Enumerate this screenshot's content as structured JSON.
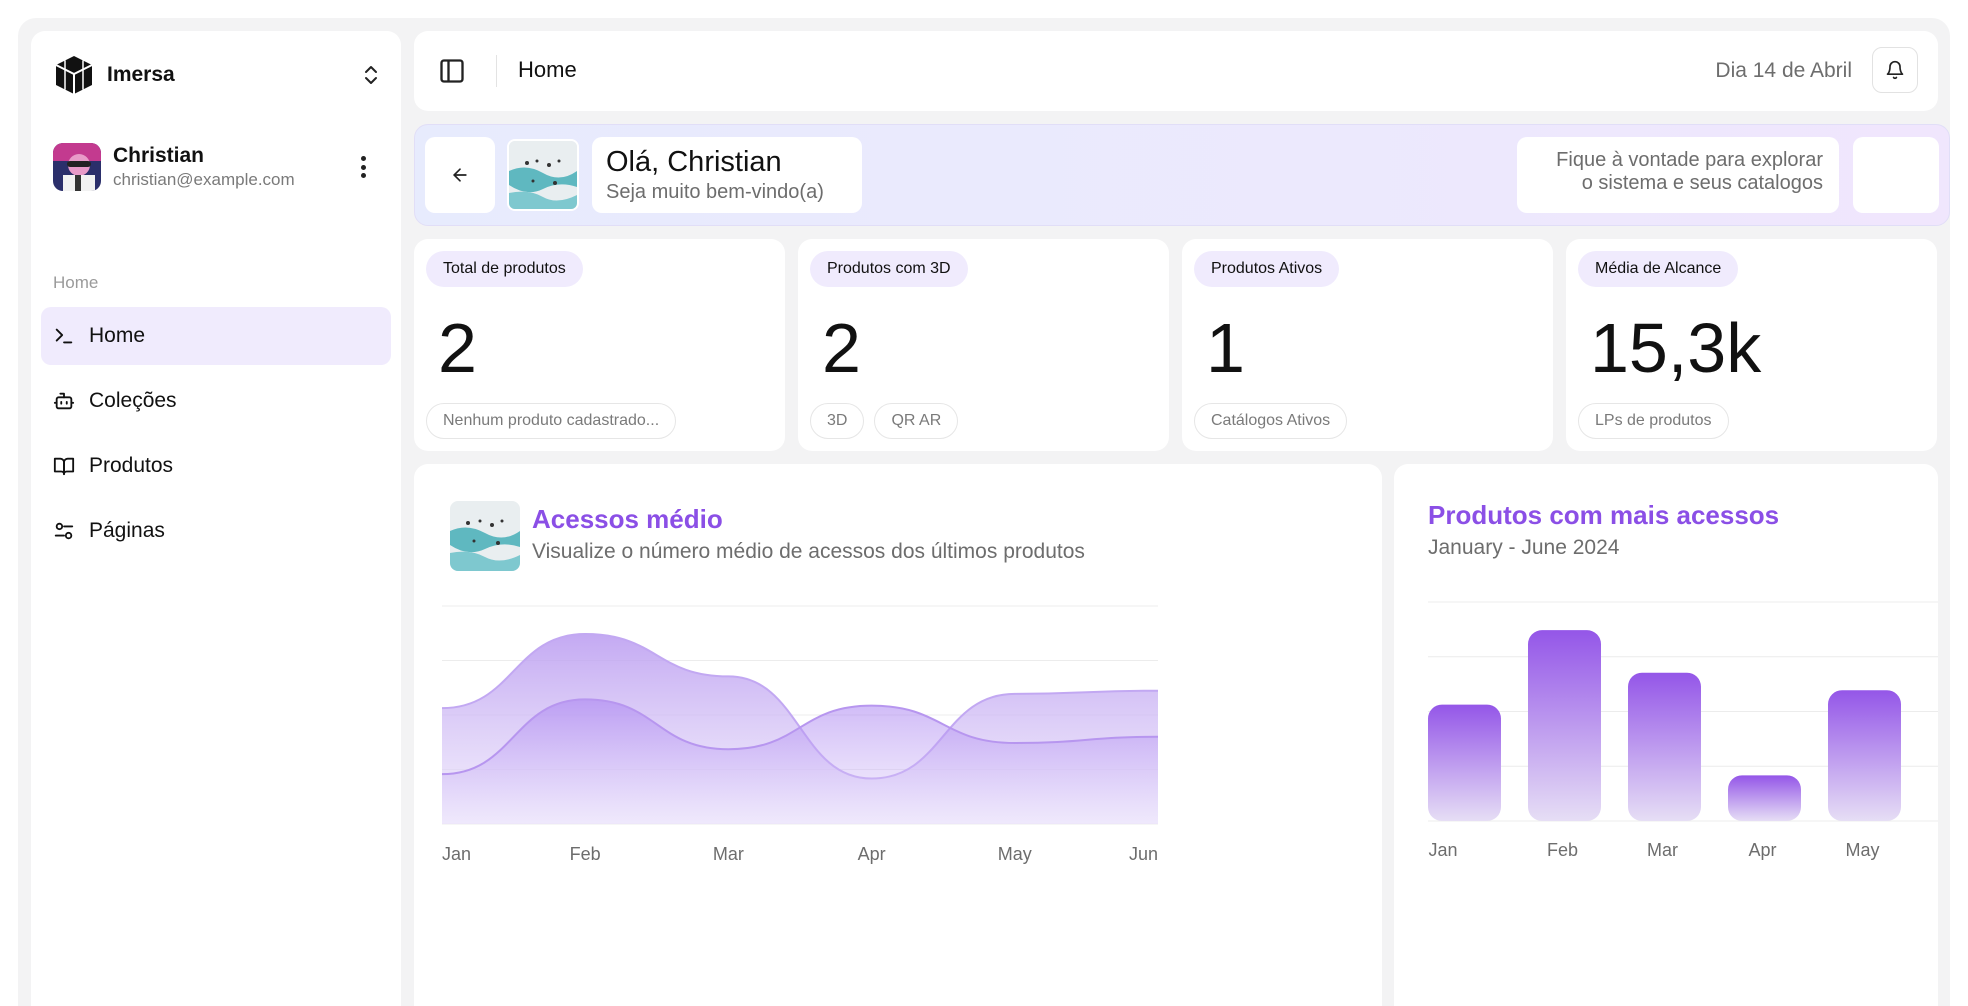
{
  "brand": {
    "name": "Imersa"
  },
  "user": {
    "name": "Christian",
    "email": "christian@example.com"
  },
  "sidebar": {
    "section_label": "Home",
    "items": [
      {
        "label": "Home",
        "icon": "terminal-icon",
        "active": true
      },
      {
        "label": "Coleções",
        "icon": "bot-icon",
        "active": false
      },
      {
        "label": "Produtos",
        "icon": "book-open-icon",
        "active": false
      },
      {
        "label": "Páginas",
        "icon": "settings-sliders-icon",
        "active": false
      }
    ]
  },
  "header": {
    "title": "Home",
    "date": "Dia 14 de Abril"
  },
  "banner": {
    "greeting": "Olá, Christian",
    "subtitle": "Seja muito bem-vindo(a)",
    "tip_line1": "Fique à vontade para explorar",
    "tip_line2": "o sistema e seus catalogos"
  },
  "stats": [
    {
      "label": "Total de produtos",
      "value": "2",
      "tags": [
        "Nenhum produto cadastrado..."
      ]
    },
    {
      "label": "Produtos com 3D",
      "value": "2",
      "tags": [
        "3D",
        "QR AR"
      ]
    },
    {
      "label": "Produtos Ativos",
      "value": "1",
      "tags": [
        "Catálogos Ativos"
      ]
    },
    {
      "label": "Média de Alcance",
      "value": "15,3k",
      "tags": [
        "LPs de produtos"
      ]
    }
  ],
  "colors": {
    "accent": "#8b4fe6",
    "accent_light": "#f0ebfd",
    "area_fill": "#c9b3f3",
    "bar_top": "#9456e8",
    "bar_bottom": "#e4dcf6"
  },
  "chart_data": [
    {
      "type": "area",
      "title": "Acessos médio",
      "subtitle": "Visualize o número médio de acessos dos últimos produtos",
      "categories": [
        "Jan",
        "Feb",
        "Mar",
        "Apr",
        "May",
        "Jun"
      ],
      "series": [
        {
          "values": [
            186,
            305,
            237,
            73,
            209,
            214
          ]
        },
        {
          "values": [
            80,
            200,
            120,
            190,
            130,
            140
          ]
        }
      ],
      "ylim": [
        0,
        350
      ],
      "grid": true
    },
    {
      "type": "bar",
      "title": "Produtos com mais acessos",
      "subtitle": "January - June 2024",
      "categories": [
        "Jan",
        "Feb",
        "Mar",
        "Apr",
        "May"
      ],
      "values": [
        186,
        305,
        237,
        73,
        209
      ],
      "ylim": [
        0,
        350
      ],
      "grid": true
    }
  ]
}
